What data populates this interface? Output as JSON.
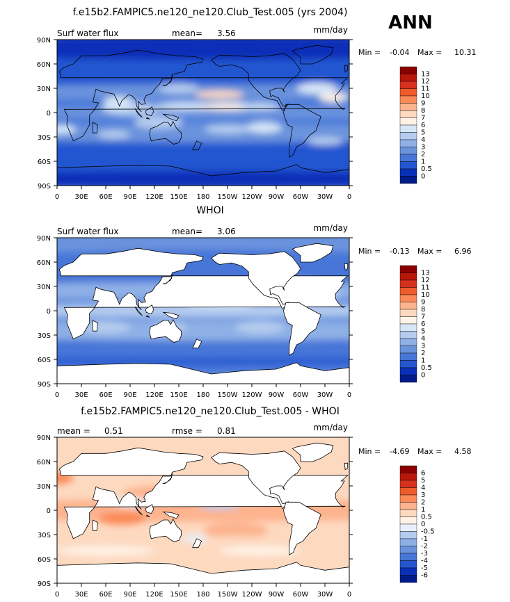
{
  "season": "ANN",
  "chart_data": [
    {
      "type": "heatmap",
      "title": "f.e15b2.FAMPIC5.ne120_ne120.Club_Test.005 (yrs 2004)",
      "variable": "Surf water flux",
      "stat1_label": "mean=",
      "stat1_value": "3.56",
      "units": "mm/day",
      "min_label": "Min =",
      "min_value": "-0.04",
      "max_label": "Max =",
      "max_value": "10.31",
      "land_masked": false,
      "levels": [
        "13",
        "12",
        "11",
        "10",
        "9",
        "8",
        "7",
        "6",
        "5",
        "4",
        "3",
        "2",
        "1",
        "0.5",
        "0"
      ],
      "colors": [
        "#8b0000",
        "#b8180a",
        "#d7301f",
        "#ef5b2b",
        "#fb8a58",
        "#fdb38e",
        "#fdd9c0",
        "#fff2e6",
        "#d6e6f7",
        "#b5ccef",
        "#8fb0e6",
        "#6b93dd",
        "#4776d8",
        "#2456d0",
        "#0a2fb8",
        "#001b8a"
      ],
      "lat_ticks": [
        "90N",
        "60N",
        "30N",
        "0",
        "30S",
        "60S",
        "90S"
      ],
      "lon_ticks": [
        "0",
        "30E",
        "60E",
        "90E",
        "120E",
        "150E",
        "180",
        "150W",
        "120W",
        "90W",
        "60W",
        "30W",
        "0"
      ]
    },
    {
      "type": "heatmap",
      "title": "WHOI",
      "variable": "Surf water flux",
      "stat1_label": "mean=",
      "stat1_value": "3.06",
      "units": "mm/day",
      "min_label": "Min =",
      "min_value": "-0.13",
      "max_label": "Max =",
      "max_value": "6.96",
      "land_masked": true,
      "levels": [
        "13",
        "12",
        "11",
        "10",
        "9",
        "8",
        "7",
        "6",
        "5",
        "4",
        "3",
        "2",
        "1",
        "0.5",
        "0"
      ],
      "colors": [
        "#8b0000",
        "#b8180a",
        "#d7301f",
        "#ef5b2b",
        "#fb8a58",
        "#fdb38e",
        "#fdd9c0",
        "#fff2e6",
        "#d6e6f7",
        "#b5ccef",
        "#8fb0e6",
        "#6b93dd",
        "#4776d8",
        "#2456d0",
        "#0a2fb8",
        "#001b8a"
      ],
      "lat_ticks": [
        "90N",
        "60N",
        "30N",
        "0",
        "30S",
        "60S",
        "90S"
      ],
      "lon_ticks": [
        "0",
        "30E",
        "60E",
        "90E",
        "120E",
        "150E",
        "180",
        "150W",
        "120W",
        "90W",
        "60W",
        "30W",
        "0"
      ]
    },
    {
      "type": "heatmap",
      "title": "f.e15b2.FAMPIC5.ne120_ne120.Club_Test.005 - WHOI",
      "stat1_label": "mean =",
      "stat1_value": "0.51",
      "stat2_label": "rmse =",
      "stat2_value": "0.81",
      "units": "mm/day",
      "min_label": "Min =",
      "min_value": "-4.69",
      "max_label": "Max =",
      "max_value": "4.58",
      "land_masked": true,
      "levels": [
        "6",
        "5",
        "4",
        "3",
        "2",
        "1",
        "0.5",
        "0",
        "-0.5",
        "-1",
        "-2",
        "-3",
        "-4",
        "-5",
        "-6"
      ],
      "colors": [
        "#8b0000",
        "#b8180a",
        "#d7301f",
        "#ef5b2b",
        "#fb8a58",
        "#fdb38e",
        "#fdd9c0",
        "#fff2e6",
        "#e8f0fb",
        "#b5ccef",
        "#8fb0e6",
        "#6b93dd",
        "#4776d8",
        "#2456d0",
        "#0a2fb8",
        "#001b8a"
      ],
      "lat_ticks": [
        "90N",
        "60N",
        "30N",
        "0",
        "30S",
        "60S",
        "90S"
      ],
      "lon_ticks": [
        "0",
        "30E",
        "60E",
        "90E",
        "120E",
        "150E",
        "180",
        "150W",
        "120W",
        "90W",
        "60W",
        "30W",
        "0"
      ]
    }
  ]
}
